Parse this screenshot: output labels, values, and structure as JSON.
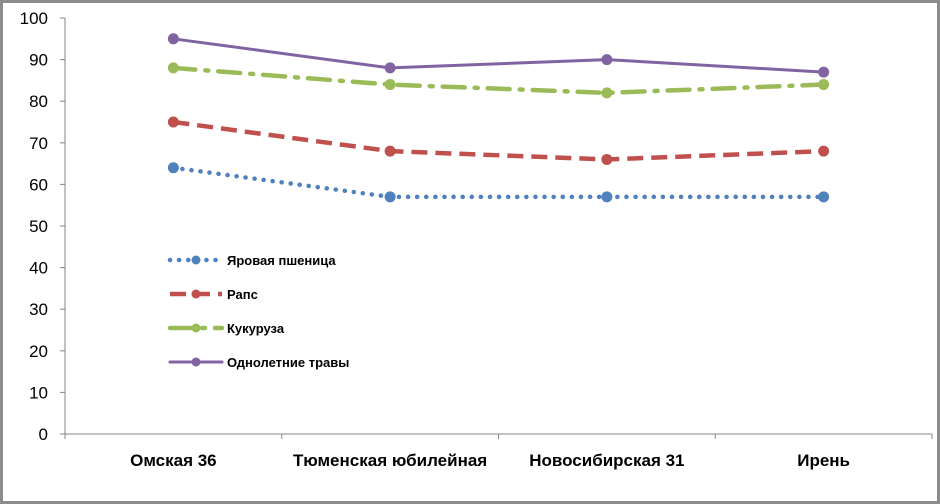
{
  "chart_data": {
    "type": "line",
    "title": "",
    "xlabel": "",
    "ylabel": "",
    "ylim": [
      0,
      100
    ],
    "yticks": [
      0,
      10,
      20,
      30,
      40,
      50,
      60,
      70,
      80,
      90,
      100
    ],
    "grid": false,
    "legend_position": "left",
    "categories": [
      "Омская 36",
      "Тюменская юбилейная",
      "Новосибирская 31",
      "Ирень"
    ],
    "series": [
      {
        "name": "Яровая пшеница",
        "values": [
          64,
          57,
          57,
          57
        ],
        "color": "#4f81bd",
        "dash": "dotted"
      },
      {
        "name": "Рапс",
        "values": [
          75,
          68,
          66,
          68
        ],
        "color": "#c0504d",
        "dash": "dashed"
      },
      {
        "name": "Кукуруза",
        "values": [
          88,
          84,
          82,
          84
        ],
        "color": "#9bbb59",
        "dash": "dash-dot"
      },
      {
        "name": "Однолетние травы",
        "values": [
          95,
          88,
          90,
          87
        ],
        "color": "#8064a2",
        "dash": "solid"
      }
    ]
  }
}
